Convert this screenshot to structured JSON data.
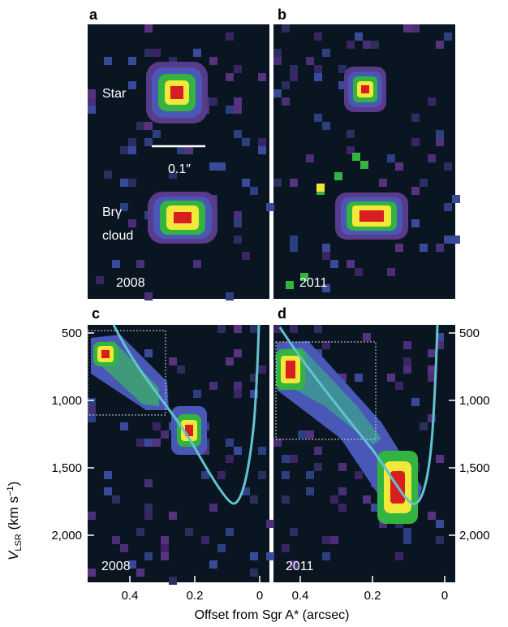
{
  "panels": {
    "a": {
      "letter": "a",
      "year": "2008",
      "star_label": "Star",
      "cloud_label_1": "Brγ",
      "cloud_label_2": "cloud",
      "scale_label": "0.1″"
    },
    "b": {
      "letter": "b",
      "year": "2011"
    },
    "c": {
      "letter": "c",
      "year": "2008"
    },
    "d": {
      "letter": "d",
      "year": "2011"
    }
  },
  "y_axis": {
    "label_main": "V",
    "label_sub": "LSR",
    "label_unit": " (km s",
    "label_exp": "−1",
    "label_close": ")",
    "ticks": [
      {
        "value": 500,
        "label": "500"
      },
      {
        "value": 1000,
        "label": "1,000"
      },
      {
        "value": 1500,
        "label": "1,500"
      },
      {
        "value": 2000,
        "label": "2,000"
      }
    ]
  },
  "x_axis": {
    "label": "Offset from Sgr A* (arcsec)",
    "ticks_c": [
      {
        "value": 0.4,
        "label": "0.4"
      },
      {
        "value": 0.2,
        "label": "0.2"
      },
      {
        "value": 0,
        "label": "0"
      }
    ],
    "ticks_d": [
      {
        "value": 0.4,
        "label": "0.4"
      },
      {
        "value": 0.2,
        "label": "0.2"
      },
      {
        "value": 0,
        "label": "0"
      }
    ]
  },
  "colors": {
    "background": "#0a1522",
    "curve": "#62c3cf",
    "ring_blue": "#4957b6",
    "green": "#33b340",
    "yellow": "#f2e83a",
    "red": "#d81e1e",
    "purple": "#5a2f7e"
  }
}
